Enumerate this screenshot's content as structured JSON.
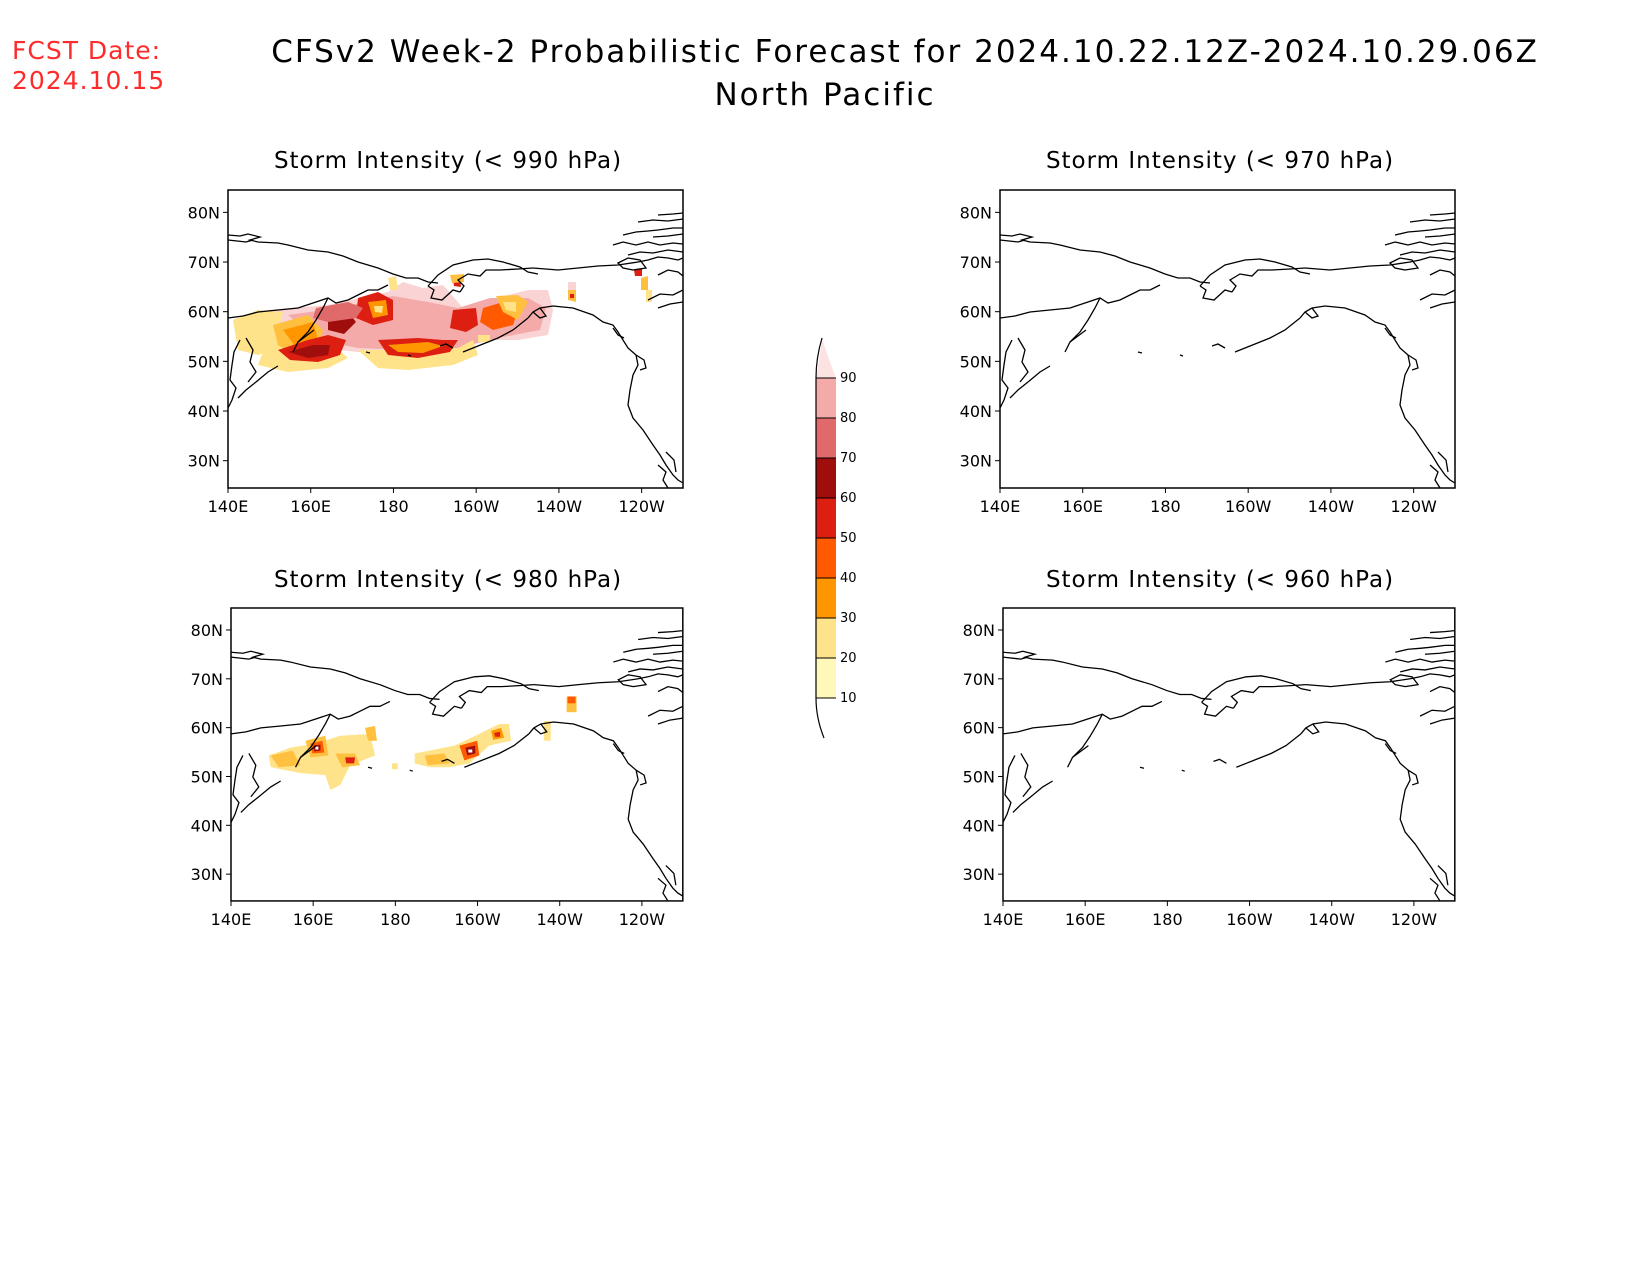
{
  "header": {
    "fcst_label": "FCST Date:",
    "fcst_date": "2024.10.15",
    "title": "CFSv2 Week-2 Probabilistic Forecast for 2024.10.22.12Z-2024.10.29.06Z",
    "region": "North Pacific"
  },
  "panels": [
    {
      "title": "Storm Intensity (< 990 hPa)",
      "x_ticks": [
        "140E",
        "160E",
        "180",
        "160W",
        "140W",
        "120W"
      ],
      "y_ticks": [
        "80N",
        "70N",
        "60N",
        "50N",
        "40N",
        "30N"
      ]
    },
    {
      "title": "Storm Intensity (< 970 hPa)",
      "x_ticks": [
        "140E",
        "160E",
        "180",
        "160W",
        "140W",
        "120W"
      ],
      "y_ticks": [
        "80N",
        "70N",
        "60N",
        "50N",
        "40N",
        "30N"
      ]
    },
    {
      "title": "Storm Intensity (< 980 hPa)",
      "x_ticks": [
        "140E",
        "160E",
        "180",
        "160W",
        "140W",
        "120W"
      ],
      "y_ticks": [
        "80N",
        "70N",
        "60N",
        "50N",
        "40N",
        "30N"
      ]
    },
    {
      "title": "Storm Intensity (< 960 hPa)",
      "x_ticks": [
        "140E",
        "160E",
        "180",
        "160W",
        "140W",
        "120W"
      ],
      "y_ticks": [
        "80N",
        "70N",
        "60N",
        "50N",
        "40N",
        "30N"
      ]
    }
  ],
  "colorbar": {
    "labels": [
      "90",
      "80",
      "70",
      "60",
      "50",
      "40",
      "30",
      "20",
      "10"
    ],
    "colors": [
      "#f7b7b7",
      "#e06a6a",
      "#a50f0f",
      "#e32112",
      "#ff6a00",
      "#ff9f10",
      "#ffd55a",
      "#fff8b8"
    ]
  },
  "colors": {
    "fcst": "#ff2a2a",
    "prob_10": "#fff8b8",
    "prob_20": "#ffe38a",
    "prob_30": "#ffc040",
    "prob_40": "#ff9600",
    "prob_50": "#ff5a00",
    "prob_60": "#dc1f10",
    "prob_70": "#a00d0d",
    "prob_80": "#e06a6a",
    "prob_90": "#f5aaaa"
  }
}
